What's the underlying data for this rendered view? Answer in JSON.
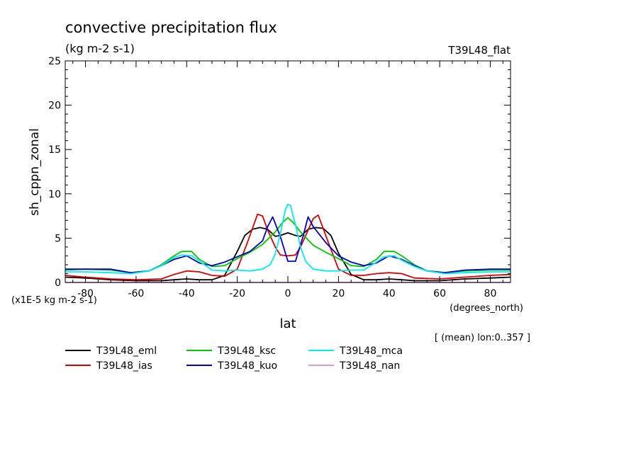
{
  "chart_data": {
    "type": "line",
    "title": "convective precipitation flux",
    "units": "(kg m-2 s-1)",
    "experiment_label": "T39L48_flat",
    "ylabel": "sh_cppn_zonal",
    "xlabel": "lat",
    "x_units": "(degrees_north)",
    "scale_note": "(x1E-5 kg m-2 s-1)",
    "mean_note": "[ (mean) lon:0..357 ]",
    "xlim": [
      -88,
      88
    ],
    "ylim": [
      0,
      25
    ],
    "x_ticks": [
      -80,
      -60,
      -40,
      -20,
      0,
      20,
      40,
      60,
      80
    ],
    "x_tick_labels": [
      "-80",
      "-60",
      "-40",
      "-20",
      "0",
      "20",
      "40",
      "60",
      "80"
    ],
    "y_ticks": [
      0,
      5,
      10,
      15,
      20,
      25
    ],
    "y_tick_labels": [
      "0",
      "5",
      "10",
      "15",
      "20",
      "25"
    ],
    "grid": false,
    "legend_position": "bottom",
    "series": [
      {
        "name": "T39L48_eml",
        "color": "#000000",
        "x": [
          -88,
          -80,
          -70,
          -60,
          -50,
          -45,
          -40,
          -35,
          -30,
          -25,
          -20,
          -17,
          -14,
          -11,
          -8,
          -5,
          -3,
          0,
          3,
          5,
          8,
          11,
          14,
          17,
          20,
          25,
          30,
          35,
          40,
          45,
          50,
          60,
          70,
          80,
          88
        ],
        "y": [
          0.6,
          0.5,
          0.3,
          0.2,
          0.2,
          0.3,
          0.4,
          0.3,
          0.3,
          0.8,
          3.5,
          5.3,
          6.0,
          6.2,
          6.0,
          5.2,
          5.3,
          5.6,
          5.3,
          5.2,
          6.0,
          6.2,
          6.1,
          5.3,
          3.3,
          0.9,
          0.3,
          0.3,
          0.4,
          0.3,
          0.2,
          0.2,
          0.4,
          0.5,
          0.6
        ]
      },
      {
        "name": "T39L48_ias",
        "color": "#dd0000",
        "x": [
          -88,
          -80,
          -70,
          -60,
          -50,
          -45,
          -40,
          -35,
          -30,
          -25,
          -20,
          -16,
          -12,
          -10,
          -8,
          -5,
          -3,
          0,
          3,
          5,
          8,
          10,
          12,
          16,
          20,
          25,
          30,
          35,
          40,
          45,
          50,
          60,
          70,
          80,
          88
        ],
        "y": [
          0.8,
          0.6,
          0.4,
          0.3,
          0.4,
          0.9,
          1.3,
          1.2,
          0.8,
          0.7,
          1.5,
          4.5,
          7.7,
          7.5,
          5.9,
          4.0,
          3.1,
          3.0,
          3.1,
          4.0,
          5.9,
          7.2,
          7.6,
          4.5,
          1.5,
          0.8,
          0.8,
          1.0,
          1.1,
          1.0,
          0.5,
          0.4,
          0.6,
          0.8,
          0.9
        ]
      },
      {
        "name": "T39L48_ksc",
        "color": "#00cc00",
        "x": [
          -88,
          -80,
          -70,
          -62,
          -55,
          -50,
          -45,
          -42,
          -38,
          -35,
          -30,
          -25,
          -20,
          -15,
          -10,
          -5,
          -2,
          0,
          2,
          5,
          10,
          15,
          20,
          25,
          30,
          35,
          38,
          42,
          45,
          50,
          55,
          62,
          70,
          80,
          88
        ],
        "y": [
          1.4,
          1.5,
          1.4,
          1.1,
          1.3,
          2.0,
          3.0,
          3.5,
          3.5,
          2.6,
          1.8,
          1.9,
          2.7,
          3.4,
          4.3,
          5.7,
          6.8,
          7.3,
          6.8,
          5.7,
          4.2,
          3.4,
          2.7,
          1.9,
          1.8,
          2.6,
          3.5,
          3.5,
          3.0,
          2.0,
          1.3,
          1.1,
          1.3,
          1.4,
          1.4
        ]
      },
      {
        "name": "T39L48_kuo",
        "color": "#0000cc",
        "x": [
          -88,
          -80,
          -70,
          -62,
          -55,
          -50,
          -45,
          -40,
          -35,
          -30,
          -25,
          -20,
          -15,
          -10,
          -8,
          -6,
          -3,
          0,
          3,
          6,
          8,
          10,
          15,
          20,
          25,
          30,
          35,
          40,
          45,
          50,
          55,
          62,
          70,
          80,
          88
        ],
        "y": [
          1.5,
          1.5,
          1.5,
          1.1,
          1.3,
          1.9,
          2.6,
          3.0,
          2.2,
          1.9,
          2.3,
          2.9,
          3.5,
          4.7,
          6.3,
          7.4,
          5.2,
          2.4,
          2.4,
          5.2,
          7.4,
          6.3,
          4.5,
          3.0,
          2.3,
          1.9,
          2.2,
          3.0,
          2.6,
          1.9,
          1.3,
          1.1,
          1.4,
          1.5,
          1.5
        ]
      },
      {
        "name": "T39L48_mca",
        "color": "#00eeee",
        "x": [
          -88,
          -80,
          -70,
          -62,
          -55,
          -50,
          -45,
          -42,
          -38,
          -35,
          -30,
          -25,
          -20,
          -15,
          -10,
          -7,
          -5,
          -3,
          -1,
          0,
          1,
          3,
          5,
          7,
          10,
          15,
          20,
          25,
          30,
          35,
          38,
          42,
          45,
          50,
          55,
          62,
          70,
          80,
          88
        ],
        "y": [
          1.2,
          1.2,
          1.1,
          1.0,
          1.3,
          1.9,
          2.8,
          3.1,
          3.0,
          2.4,
          1.4,
          1.3,
          1.4,
          1.3,
          1.5,
          2.0,
          3.2,
          5.5,
          8.2,
          8.8,
          8.7,
          6.5,
          4.0,
          2.4,
          1.5,
          1.3,
          1.3,
          1.4,
          1.4,
          2.3,
          2.9,
          3.0,
          2.5,
          1.8,
          1.3,
          1.0,
          1.1,
          1.2,
          1.2
        ]
      },
      {
        "name": "T39L48_nan",
        "color": "#dd99dd",
        "x": [
          -88,
          88
        ],
        "y": [
          0,
          0
        ]
      }
    ]
  }
}
